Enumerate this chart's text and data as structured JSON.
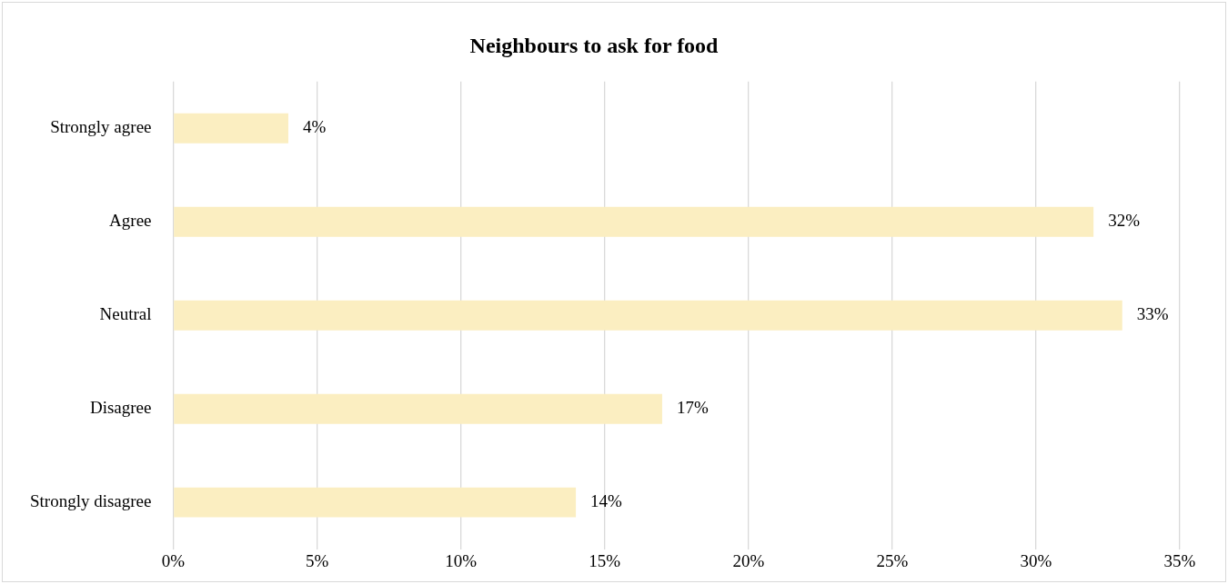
{
  "chart_data": {
    "type": "bar",
    "title": "Neighbours to ask for food",
    "orientation": "horizontal",
    "categories": [
      "Strongly agree",
      "Agree",
      "Neutral",
      "Disagree",
      "Strongly disagree"
    ],
    "values": [
      4,
      32,
      33,
      17,
      14
    ],
    "value_labels": [
      "4%",
      "32%",
      "33%",
      "17%",
      "14%"
    ],
    "color": "#fbeec1",
    "xlim": [
      0,
      35
    ],
    "xticks": [
      {
        "value": 0,
        "label": "0%"
      },
      {
        "value": 5,
        "label": "5%"
      },
      {
        "value": 10,
        "label": "10%"
      },
      {
        "value": 15,
        "label": "15%"
      },
      {
        "value": 20,
        "label": "20%"
      },
      {
        "value": 25,
        "label": "25%"
      },
      {
        "value": 30,
        "label": "30%"
      },
      {
        "value": 35,
        "label": "35%"
      }
    ],
    "grid": "x",
    "legend": false
  }
}
